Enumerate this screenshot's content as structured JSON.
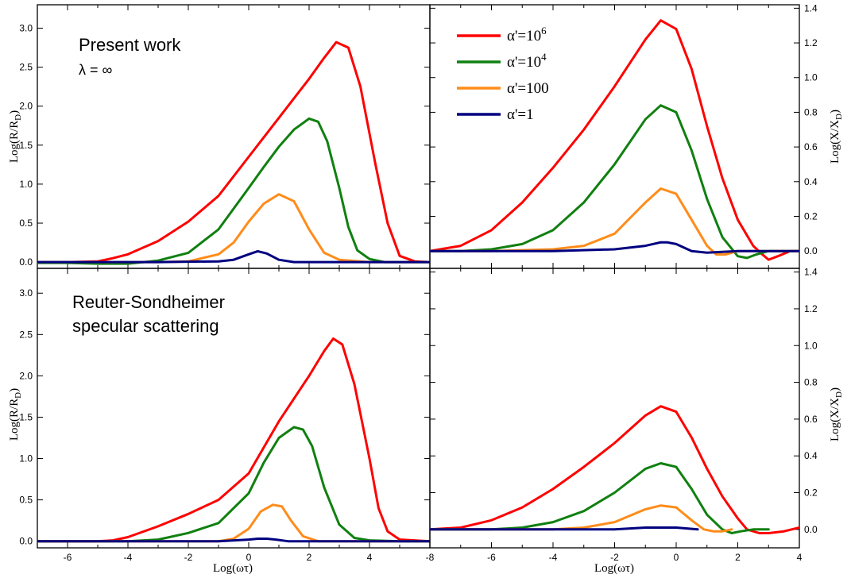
{
  "colors": {
    "a1e6": "#ff0000",
    "a1e4": "#108010",
    "a100": "#ff8c1a",
    "a1": "#000080"
  },
  "legend": [
    "α'=10^6",
    "α'=10^4",
    "α'=100",
    "α'=1"
  ],
  "annotations": {
    "top_left_title": "Present work",
    "top_left_sub": "λ = ∞",
    "bottom_left_line1": "Reuter-Sondheimer",
    "bottom_left_line2": "specular scattering"
  },
  "axis_labels": {
    "x": "Log(ωτ)",
    "y_left": "Log(R/R_D)",
    "y_right": "Log(X/X_D)"
  },
  "chart_data": [
    {
      "id": "top-left",
      "type": "line",
      "xlim": [
        -7,
        6
      ],
      "ylim": [
        -0.08,
        3.3
      ],
      "xticks": [
        -6,
        -4,
        -2,
        0,
        2,
        4
      ],
      "yticks": [
        0.0,
        0.5,
        1.0,
        1.5,
        2.0,
        2.5,
        3.0
      ],
      "ytick_labels": [
        "0.0",
        "0.5",
        "1.0",
        "1.5",
        "2.0",
        "2.5",
        "3.0"
      ],
      "series": [
        {
          "color_key": "a1e6",
          "x": [
            -7,
            -6,
            -5,
            -4.5,
            -4,
            -3,
            -2,
            -1,
            0,
            1,
            2,
            2.5,
            2.9,
            3.3,
            3.7,
            4.2,
            4.6,
            5,
            5.5,
            6
          ],
          "y": [
            0.0,
            0.0,
            0.01,
            0.05,
            0.1,
            0.27,
            0.52,
            0.85,
            1.35,
            1.85,
            2.35,
            2.62,
            2.82,
            2.75,
            2.25,
            1.25,
            0.5,
            0.08,
            0.01,
            0.0
          ]
        },
        {
          "color_key": "a1e4",
          "x": [
            -7,
            -6,
            -5,
            -4,
            -3,
            -2,
            -1,
            0,
            0.5,
            1,
            1.5,
            2,
            2.3,
            2.6,
            3,
            3.3,
            3.6,
            4,
            4.5,
            5,
            6
          ],
          "y": [
            -0.01,
            -0.01,
            -0.02,
            -0.02,
            0.02,
            0.12,
            0.42,
            0.95,
            1.22,
            1.48,
            1.7,
            1.84,
            1.8,
            1.55,
            0.95,
            0.45,
            0.15,
            0.04,
            0.0,
            0.0,
            0.0
          ]
        },
        {
          "color_key": "a100",
          "x": [
            -7,
            -5,
            -3,
            -2,
            -1,
            -0.5,
            0,
            0.5,
            1,
            1.5,
            2,
            2.5,
            3,
            4,
            6
          ],
          "y": [
            0.0,
            0.0,
            0.0,
            0.01,
            0.1,
            0.25,
            0.52,
            0.75,
            0.87,
            0.78,
            0.42,
            0.12,
            0.03,
            0.0,
            0.0
          ]
        },
        {
          "color_key": "a1",
          "x": [
            -7,
            -5,
            -3,
            -1,
            -0.5,
            0,
            0.3,
            0.6,
            1,
            1.5,
            3,
            6
          ],
          "y": [
            0.0,
            0.0,
            0.0,
            0.01,
            0.03,
            0.1,
            0.14,
            0.11,
            0.03,
            0.0,
            0.0,
            0.0
          ]
        }
      ]
    },
    {
      "id": "top-right",
      "type": "line",
      "xlim": [
        -8,
        4
      ],
      "ylim": [
        -0.1,
        1.42
      ],
      "xticks": [
        -8,
        -6,
        -4,
        -2,
        0,
        2,
        4
      ],
      "yticks": [
        0.0,
        0.2,
        0.4,
        0.6,
        0.8,
        1.0,
        1.2,
        1.4
      ],
      "ytick_labels": [
        "0.0",
        "0.2",
        "0.4",
        "0.6",
        "0.8",
        "1.0",
        "1.2",
        "1.4"
      ],
      "series": [
        {
          "color_key": "a1e6",
          "x": [
            -8,
            -7,
            -6,
            -5,
            -4,
            -3,
            -2,
            -1,
            -0.5,
            0,
            0.5,
            1,
            1.5,
            2,
            2.5,
            2.8,
            3,
            3.3,
            3.7,
            4
          ],
          "y": [
            0.0,
            0.03,
            0.12,
            0.28,
            0.48,
            0.7,
            0.95,
            1.22,
            1.33,
            1.28,
            1.05,
            0.72,
            0.42,
            0.18,
            0.03,
            -0.02,
            -0.05,
            -0.03,
            0.0,
            0.0
          ]
        },
        {
          "color_key": "a1e4",
          "x": [
            -8,
            -7,
            -6,
            -5,
            -4,
            -3,
            -2,
            -1,
            -0.5,
            0,
            0.5,
            1,
            1.5,
            2,
            2.3,
            2.6,
            3,
            3.5,
            4
          ],
          "y": [
            0.0,
            0.0,
            0.01,
            0.04,
            0.12,
            0.28,
            0.5,
            0.76,
            0.84,
            0.8,
            0.58,
            0.3,
            0.08,
            -0.03,
            -0.04,
            -0.02,
            0.0,
            0.0,
            0.0
          ]
        },
        {
          "color_key": "a100",
          "x": [
            -8,
            -6,
            -4,
            -3,
            -2,
            -1,
            -0.5,
            0,
            0.5,
            1,
            1.3,
            1.6,
            2,
            2.5,
            3,
            4
          ],
          "y": [
            0.0,
            0.0,
            0.01,
            0.03,
            0.1,
            0.28,
            0.36,
            0.33,
            0.18,
            0.03,
            -0.02,
            -0.02,
            0.0,
            0.0,
            0.0,
            0.0
          ]
        },
        {
          "color_key": "a1",
          "x": [
            -8,
            -6,
            -4,
            -2,
            -1,
            -0.5,
            -0.3,
            0,
            0.5,
            1,
            2,
            4
          ],
          "y": [
            0.0,
            0.0,
            0.0,
            0.01,
            0.03,
            0.05,
            0.05,
            0.04,
            0.0,
            -0.01,
            0.0,
            0.0
          ]
        }
      ]
    },
    {
      "id": "bottom-left",
      "type": "line",
      "xlim": [
        -7,
        6
      ],
      "ylim": [
        -0.08,
        3.3
      ],
      "xticks": [
        -6,
        -4,
        -2,
        0,
        2,
        4
      ],
      "xtick_labels": [
        "-6",
        "-4",
        "-2",
        "0",
        "2",
        "4"
      ],
      "yticks": [
        0.0,
        0.5,
        1.0,
        1.5,
        2.0,
        2.5,
        3.0
      ],
      "ytick_labels": [
        "0.0",
        "0.5",
        "1.0",
        "1.5",
        "2.0",
        "2.5",
        "3.0"
      ],
      "series": [
        {
          "color_key": "a1e6",
          "x": [
            -7,
            -6,
            -5,
            -4.5,
            -4,
            -3,
            -2,
            -1,
            0,
            1,
            2,
            2.5,
            2.8,
            3.1,
            3.5,
            4,
            4.3,
            4.6,
            5,
            6
          ],
          "y": [
            0.0,
            0.0,
            0.0,
            0.01,
            0.05,
            0.18,
            0.33,
            0.5,
            0.82,
            1.45,
            2.0,
            2.3,
            2.45,
            2.38,
            1.9,
            1.0,
            0.4,
            0.12,
            0.02,
            0.0
          ]
        },
        {
          "color_key": "a1e4",
          "x": [
            -7,
            -5,
            -4,
            -3,
            -2,
            -1,
            0,
            0.5,
            1,
            1.5,
            1.8,
            2.1,
            2.5,
            3,
            3.5,
            4,
            5,
            6
          ],
          "y": [
            0.0,
            0.0,
            0.0,
            0.02,
            0.1,
            0.22,
            0.58,
            0.95,
            1.25,
            1.38,
            1.35,
            1.15,
            0.65,
            0.2,
            0.04,
            0.01,
            0.0,
            0.0
          ]
        },
        {
          "color_key": "a100",
          "x": [
            -7,
            -3,
            -1,
            -0.5,
            0,
            0.4,
            0.8,
            1.1,
            1.4,
            1.8,
            2.3,
            6
          ],
          "y": [
            0.0,
            0.0,
            0.0,
            0.03,
            0.15,
            0.36,
            0.44,
            0.42,
            0.25,
            0.06,
            0.0,
            0.0
          ]
        },
        {
          "color_key": "a1",
          "x": [
            -7,
            -3,
            -1,
            0,
            0.3,
            0.6,
            0.9,
            1.3,
            2,
            6
          ],
          "y": [
            0.0,
            0.0,
            0.0,
            0.02,
            0.03,
            0.03,
            0.02,
            0.0,
            0.0,
            0.0
          ]
        }
      ]
    },
    {
      "id": "bottom-right",
      "type": "line",
      "xlim": [
        -8,
        4
      ],
      "ylim": [
        -0.1,
        1.42
      ],
      "xticks": [
        -8,
        -6,
        -4,
        -2,
        0,
        2,
        4
      ],
      "xtick_labels": [
        "-8",
        "-6",
        "-4",
        "-2",
        "0",
        "2",
        "4"
      ],
      "yticks": [
        0.0,
        0.2,
        0.4,
        0.6,
        0.8,
        1.0,
        1.2,
        1.4
      ],
      "ytick_labels": [
        "0.0",
        "0.2",
        "0.4",
        "0.6",
        "0.8",
        "1.0",
        "1.2",
        "1.4"
      ],
      "series": [
        {
          "color_key": "a1e6",
          "x": [
            -8,
            -7,
            -6,
            -5,
            -4,
            -3,
            -2,
            -1,
            -0.5,
            0,
            0.5,
            1,
            1.5,
            2,
            2.3,
            2.7,
            3,
            3.5,
            4
          ],
          "y": [
            0.0,
            0.01,
            0.05,
            0.12,
            0.22,
            0.34,
            0.47,
            0.62,
            0.67,
            0.64,
            0.5,
            0.33,
            0.18,
            0.06,
            0.0,
            -0.02,
            -0.02,
            -0.01,
            0.01
          ]
        },
        {
          "color_key": "a1e4",
          "x": [
            -8,
            -6,
            -5,
            -4,
            -3,
            -2,
            -1,
            -0.5,
            0,
            0.5,
            1,
            1.5,
            1.8,
            2.1,
            2.5,
            3
          ],
          "y": [
            0.0,
            0.0,
            0.01,
            0.04,
            0.1,
            0.2,
            0.33,
            0.36,
            0.34,
            0.22,
            0.08,
            0.0,
            -0.02,
            -0.01,
            0.0,
            0.0
          ]
        },
        {
          "color_key": "a100",
          "x": [
            -8,
            -5,
            -4,
            -3,
            -2,
            -1,
            -0.5,
            0,
            0.5,
            0.9,
            1.2,
            1.5,
            1.8
          ],
          "y": [
            0.0,
            0.0,
            0.0,
            0.01,
            0.04,
            0.11,
            0.13,
            0.12,
            0.05,
            0.0,
            -0.01,
            -0.01,
            0.0
          ]
        },
        {
          "color_key": "a1",
          "x": [
            -8,
            -6,
            -4,
            -2,
            -1,
            -0.5,
            0,
            0.7
          ],
          "y": [
            0.0,
            0.0,
            0.0,
            0.0,
            0.01,
            0.01,
            0.01,
            0.0
          ]
        }
      ]
    }
  ]
}
